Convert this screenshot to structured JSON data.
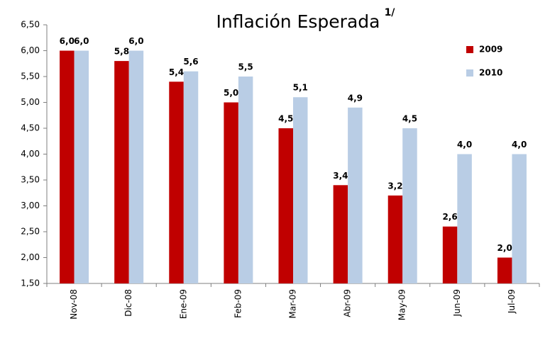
{
  "chart_data": {
    "type": "bar",
    "title": "Inflación Esperada",
    "title_note": "1/",
    "categories": [
      "Nov-08",
      "Dic-08",
      "Ene-09",
      "Feb-09",
      "Mar-09",
      "Abr-09",
      "May-09",
      "Jun-09",
      "Jul-09"
    ],
    "series": [
      {
        "name": "2009",
        "color": "#c00000",
        "values": [
          6.0,
          5.8,
          5.4,
          5.0,
          4.5,
          3.4,
          3.2,
          2.6,
          2.0
        ],
        "value_labels": [
          "6,0",
          "5,8",
          "5,4",
          "5,0",
          "4,5",
          "3,4",
          "3,2",
          "2,6",
          "2,0"
        ]
      },
      {
        "name": "2010",
        "color": "#b9cde5",
        "values": [
          6.0,
          6.0,
          5.6,
          5.5,
          5.1,
          4.9,
          4.5,
          4.0,
          4.0
        ],
        "value_labels": [
          "6,0",
          "6,0",
          "5,6",
          "5,5",
          "5,1",
          "4,9",
          "4,5",
          "4,0",
          "4,0"
        ]
      }
    ],
    "ylim": [
      1.5,
      6.5
    ],
    "yticks": [
      {
        "value": 1.5,
        "label": "1,50"
      },
      {
        "value": 2.0,
        "label": "2,00"
      },
      {
        "value": 2.5,
        "label": "2,50"
      },
      {
        "value": 3.0,
        "label": "3,00"
      },
      {
        "value": 3.5,
        "label": "3,50"
      },
      {
        "value": 4.0,
        "label": "4,00"
      },
      {
        "value": 4.5,
        "label": "4,50"
      },
      {
        "value": 5.0,
        "label": "5,00"
      },
      {
        "value": 5.5,
        "label": "5,50"
      },
      {
        "value": 6.0,
        "label": "6,00"
      },
      {
        "value": 6.5,
        "label": "6,50"
      }
    ],
    "grid": false,
    "legend": "upper right"
  }
}
